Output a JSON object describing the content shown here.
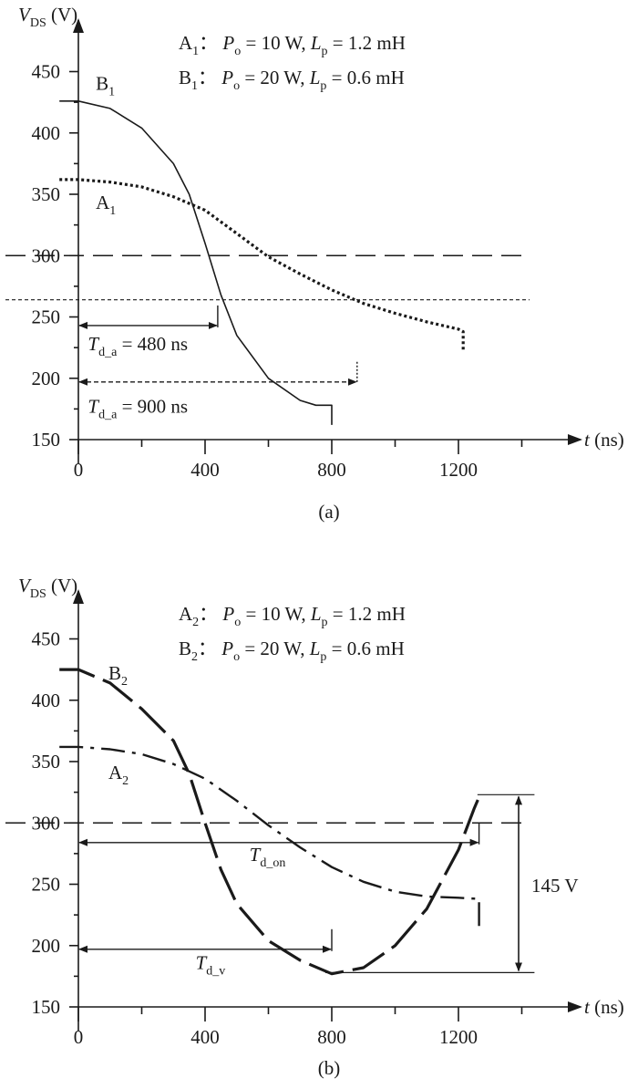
{
  "chart_data": [
    {
      "type": "line",
      "panel_label": "(a)",
      "xlabel": {
        "var": "t",
        "unit": "(ns)"
      },
      "ylabel": {
        "var": "V",
        "sub": "DS",
        "unit": "(V)"
      },
      "xlim": [
        0,
        1450
      ],
      "ylim": [
        150,
        480
      ],
      "xticks": [
        0,
        400,
        800,
        1200
      ],
      "xtick_labels": [
        "0",
        "400",
        "800",
        "1200"
      ],
      "yticks": [
        150,
        200,
        250,
        300,
        350,
        400,
        450
      ],
      "ytick_labels": [
        "150",
        "200",
        "250",
        "300",
        "350",
        "400",
        "450"
      ],
      "legend": [
        {
          "name": "A",
          "sub": "1",
          "sep": "：",
          "p": "P",
          "psub": "o",
          "pval": " = 10 W, ",
          "l": "L",
          "lsub": "p",
          "lval": " = 1.2 mH"
        },
        {
          "name": "B",
          "sub": "1",
          "sep": "：",
          "p": "P",
          "psub": "o",
          "pval": " = 20 W, ",
          "l": "L",
          "lsub": "p",
          "lval": " = 0.6 mH"
        }
      ],
      "series": [
        {
          "name": "B1",
          "style": "solid",
          "x": [
            -60,
            0,
            100,
            200,
            300,
            350,
            400,
            450,
            500,
            600,
            700,
            750,
            800,
            800
          ],
          "y": [
            426,
            426,
            420,
            404,
            375,
            350,
            310,
            268,
            235,
            200,
            182,
            178,
            178,
            162
          ]
        },
        {
          "name": "A1",
          "style": "dotted-bold",
          "x": [
            -60,
            0,
            100,
            200,
            300,
            400,
            500,
            600,
            700,
            800,
            900,
            1000,
            1100,
            1200,
            1215,
            1215
          ],
          "y": [
            362,
            362,
            360,
            356,
            348,
            337,
            318,
            299,
            285,
            272,
            261,
            253,
            246,
            240,
            238,
            222
          ]
        }
      ],
      "hlines": [
        {
          "y": 300,
          "style": "long-dash"
        },
        {
          "y": 264,
          "style": "fine-dash"
        }
      ],
      "annotations": [
        {
          "label": "B",
          "sub": "1",
          "x": 55,
          "y": 435
        },
        {
          "label": "A",
          "sub": "1",
          "x": 55,
          "y": 338
        },
        {
          "text_var": "T",
          "text_sub": "d_a",
          "text_val": " = 480 ns",
          "x": 30,
          "y": 223,
          "arrow_x": [
            0,
            440
          ],
          "arrow_y": 243
        },
        {
          "text_var": "T",
          "text_sub": "d_a",
          "text_val": " = 900 ns",
          "x": 30,
          "y": 172,
          "arrow_x": [
            0,
            880
          ],
          "arrow_y": 197
        }
      ]
    },
    {
      "type": "line",
      "panel_label": "(b)",
      "xlabel": {
        "var": "t",
        "unit": "(ns)"
      },
      "ylabel": {
        "var": "V",
        "sub": "DS",
        "unit": "(V)"
      },
      "xlim": [
        0,
        1450
      ],
      "ylim": [
        150,
        480
      ],
      "xticks": [
        0,
        400,
        800,
        1200
      ],
      "xtick_labels": [
        "0",
        "400",
        "800",
        "1200"
      ],
      "yticks": [
        150,
        200,
        250,
        300,
        350,
        400,
        450
      ],
      "ytick_labels": [
        "150",
        "200",
        "250",
        "300",
        "350",
        "400",
        "450"
      ],
      "legend": [
        {
          "name": "A",
          "sub": "2",
          "sep": "：",
          "p": "P",
          "psub": "o",
          "pval": " = 10 W, ",
          "l": "L",
          "lsub": "p",
          "lval": " = 1.2 mH"
        },
        {
          "name": "B",
          "sub": "2",
          "sep": "：",
          "p": "P",
          "psub": "o",
          "pval": " = 20 W, ",
          "l": "L",
          "lsub": "p",
          "lval": " = 0.6 mH"
        }
      ],
      "series": [
        {
          "name": "B2",
          "style": "long-dash-bold",
          "x": [
            -60,
            0,
            100,
            200,
            300,
            350,
            400,
            450,
            500,
            600,
            700,
            800,
            900,
            1000,
            1100,
            1200,
            1250,
            1270
          ],
          "y": [
            425,
            425,
            414,
            393,
            367,
            340,
            300,
            262,
            234,
            204,
            188,
            177,
            182,
            200,
            230,
            278,
            312,
            324
          ]
        },
        {
          "name": "A2",
          "style": "dash-dot",
          "x": [
            -60,
            0,
            100,
            200,
            300,
            400,
            500,
            600,
            700,
            800,
            900,
            1000,
            1100,
            1200,
            1265,
            1265
          ],
          "y": [
            362,
            362,
            360,
            356,
            348,
            336,
            318,
            298,
            280,
            264,
            252,
            244,
            240,
            239,
            238,
            210
          ]
        }
      ],
      "hlines": [
        {
          "y": 300,
          "style": "long-dash"
        }
      ],
      "annotations": [
        {
          "label": "B",
          "sub": "2",
          "x": 95,
          "y": 417
        },
        {
          "label": "A",
          "sub": "2",
          "x": 95,
          "y": 336
        },
        {
          "text_var": "T",
          "text_sub": "d_on",
          "text_val": "",
          "x": 540,
          "y": 269,
          "arrow_x": [
            0,
            1265
          ],
          "arrow_y": 284
        },
        {
          "text_var": "T",
          "text_sub": "d_v",
          "text_val": "",
          "x": 370,
          "y": 181,
          "arrow_x": [
            0,
            800
          ],
          "arrow_y": 197
        },
        {
          "text_var": "",
          "text_sub": "",
          "text_val": "145 V",
          "x": 1400,
          "y": 249,
          "arrow_y_range": [
            178,
            323
          ],
          "arrow_x": 1390
        }
      ]
    }
  ]
}
